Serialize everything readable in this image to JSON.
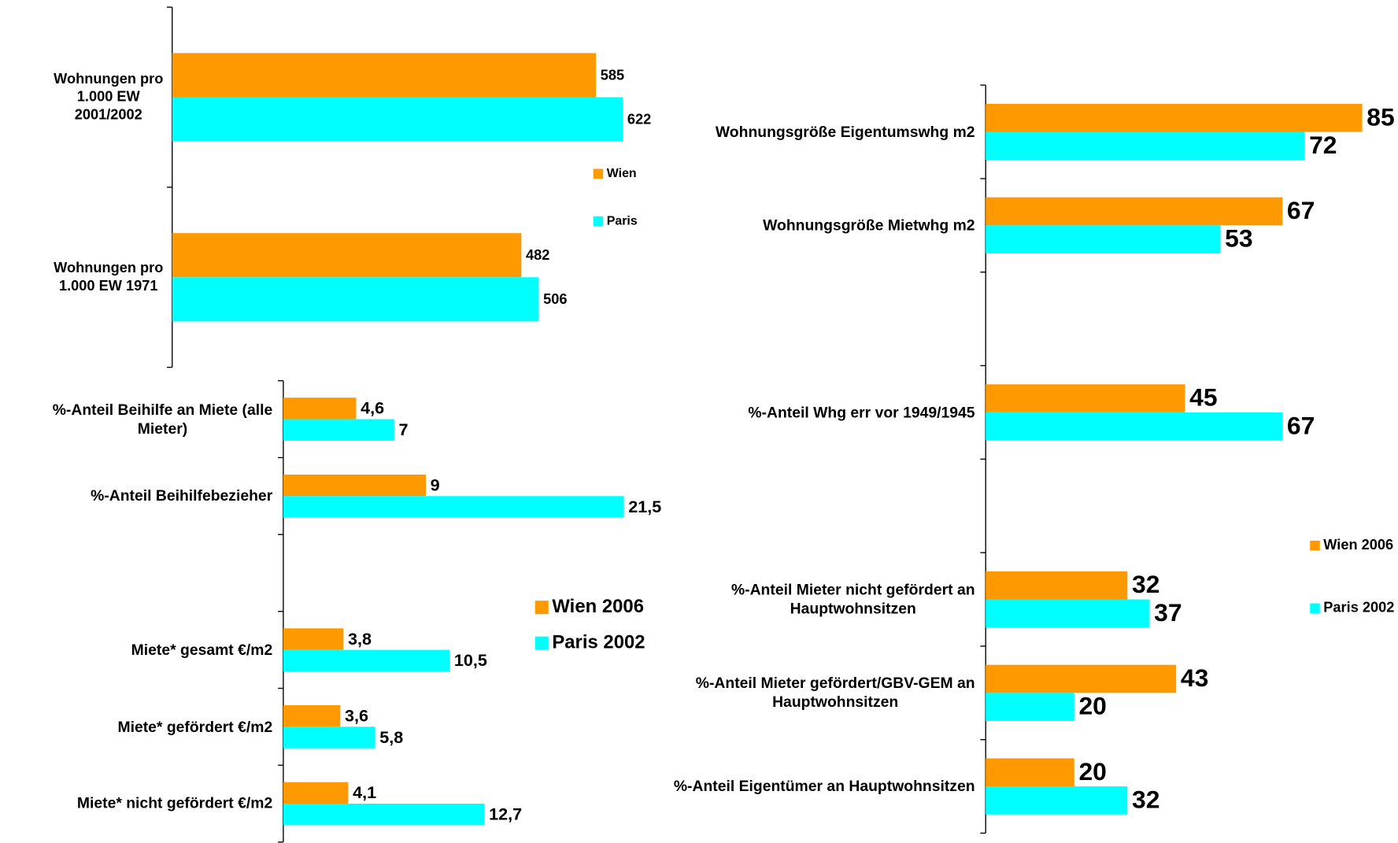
{
  "chart_data": [
    {
      "type": "bar",
      "orientation": "horizontal",
      "categories": [
        "Wohnungen pro\n1.000 EW\n2001/2002",
        "Wohnungen pro\n1.000 EW 1971"
      ],
      "series": [
        {
          "name": "Wien",
          "color": "#ff9900",
          "values": [
            585,
            482
          ]
        },
        {
          "name": "Paris",
          "color": "#00ffff",
          "values": [
            622,
            506
          ]
        }
      ],
      "xlim": [
        0,
        700
      ]
    },
    {
      "type": "bar",
      "orientation": "horizontal",
      "categories": [
        "%-Anteil Beihilfe an Miete (alle\nMieter)",
        "%-Anteil Beihilfebezieher",
        null,
        "Miete* gesamt €/m2",
        "Miete* gefördert €/m2",
        "Miete* nicht gefördert €/m2"
      ],
      "series": [
        {
          "name": "Wien 2006",
          "color": "#ff9900",
          "values": [
            4.6,
            9,
            null,
            3.8,
            3.6,
            4.1
          ],
          "value_labels": [
            "4,6",
            "9",
            null,
            "3,8",
            "3,6",
            "4,1"
          ]
        },
        {
          "name": "Paris 2002",
          "color": "#00ffff",
          "values": [
            7,
            21.5,
            null,
            10.5,
            5.8,
            12.7
          ],
          "value_labels": [
            "7",
            "21,5",
            null,
            "10,5",
            "5,8",
            "12,7"
          ]
        }
      ],
      "xlim": [
        0,
        25
      ]
    },
    {
      "type": "bar",
      "orientation": "horizontal",
      "categories": [
        "Wohnungsgröße Eigentumswhg m2",
        "Wohnungsgröße Mietwhg m2",
        null,
        "%-Anteil Whg err vor 1949/1945",
        null,
        "%-Anteil Mieter nicht gefördert an\nHauptwohnsitzen",
        "%-Anteil Mieter gefördert/GBV-GEM an\nHauptwohnsitzen",
        "%-Anteil Eigentümer an Hauptwohnsitzen"
      ],
      "series": [
        {
          "name": "Wien 2006",
          "color": "#ff9900",
          "values": [
            85,
            67,
            null,
            45,
            null,
            32,
            43,
            20
          ]
        },
        {
          "name": "Paris 2002",
          "color": "#00ffff",
          "values": [
            72,
            53,
            null,
            67,
            null,
            37,
            20,
            32
          ]
        }
      ],
      "xlim": [
        0,
        90
      ]
    }
  ]
}
